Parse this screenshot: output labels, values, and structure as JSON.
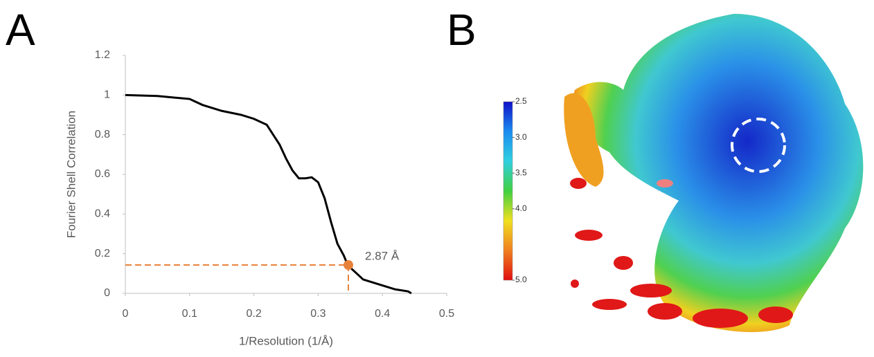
{
  "panel_labels": [
    "A",
    "B"
  ],
  "chart_data": [
    {
      "type": "line",
      "x_label": "1/Resolution (1/Å)",
      "y_label": "Fourier Shell Correlation",
      "x": [
        0,
        0.05,
        0.1,
        0.12,
        0.15,
        0.18,
        0.2,
        0.22,
        0.23,
        0.24,
        0.25,
        0.26,
        0.27,
        0.28,
        0.29,
        0.3,
        0.31,
        0.32,
        0.33,
        0.34,
        0.345,
        0.35,
        0.36,
        0.37,
        0.38,
        0.4,
        0.42,
        0.44,
        0.445
      ],
      "values": [
        1,
        0.995,
        0.98,
        0.95,
        0.92,
        0.9,
        0.88,
        0.85,
        0.8,
        0.75,
        0.68,
        0.62,
        0.58,
        0.58,
        0.585,
        0.56,
        0.48,
        0.36,
        0.25,
        0.19,
        0.15,
        0.13,
        0.1,
        0.07,
        0.06,
        0.04,
        0.02,
        0.01,
        0
      ],
      "color": "#000000",
      "xlim": [
        0,
        0.5
      ],
      "xticks": [
        0,
        0.1,
        0.2,
        0.3,
        0.4,
        0.5
      ],
      "ylim": [
        0,
        1.2
      ],
      "yticks": [
        0,
        0.2,
        0.4,
        0.6,
        0.8,
        1,
        1.2
      ],
      "annotation": {
        "text": "2.87 Å",
        "x": 0.347,
        "y": 0.143,
        "color": "#e8823a"
      }
    },
    {
      "type": "colorbar",
      "ylim": [
        2.5,
        5.0
      ],
      "yticks": [
        2.5,
        {
          "value": 3,
          "label": "3.0"
        },
        3.5,
        {
          "value": 4,
          "label": "4.0"
        },
        {
          "value": 5,
          "label": "5.0"
        }
      ],
      "colors": [
        "#1010c8",
        "#1a8cf0",
        "#30d0e0",
        "#40d040",
        "#f0e020",
        "#f08020",
        "#e01010"
      ]
    }
  ]
}
